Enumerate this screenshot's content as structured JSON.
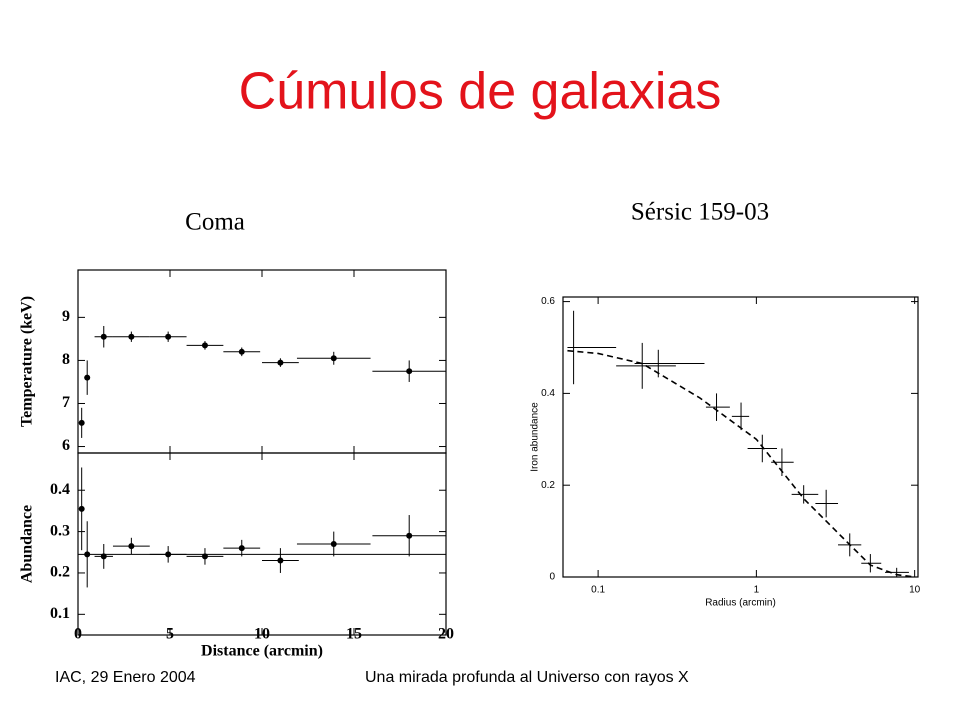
{
  "title": "Cúmulos de galaxias",
  "footer_left": "IAC, 29 Enero 2004",
  "footer_right": "Una mirada profunda al Universo con rayos X",
  "chart_data": [
    {
      "type": "scatter",
      "title": "Coma",
      "y_label": "Temperature (keV)",
      "x": [
        0.2,
        0.5,
        1.4,
        2.9,
        4.9,
        6.9,
        8.9,
        11,
        13.9,
        18
      ],
      "xerr": [
        0.15,
        0.15,
        0.5,
        1,
        1,
        1,
        1,
        1,
        2,
        2
      ],
      "values": [
        6.55,
        7.6,
        8.55,
        8.55,
        8.55,
        8.35,
        8.2,
        7.95,
        8.05,
        7.75
      ],
      "yerr": [
        0.35,
        0.4,
        0.25,
        0.12,
        0.12,
        0.1,
        0.1,
        0.1,
        0.15,
        0.25
      ],
      "xlim": [
        0,
        20
      ],
      "xticks": [
        0,
        5,
        10,
        15,
        20
      ],
      "ylim": [
        5.85,
        10.1
      ],
      "yticks": [
        6,
        7,
        8,
        9
      ]
    },
    {
      "type": "scatter",
      "x_label": "Distance (arcmin)",
      "y_label": "Abundance",
      "x": [
        0.2,
        0.5,
        1.4,
        2.9,
        4.9,
        6.9,
        8.9,
        11,
        13.9,
        18
      ],
      "xerr": [
        0.15,
        0.15,
        0.5,
        1,
        1,
        1,
        1,
        1,
        2,
        2
      ],
      "values": [
        0.355,
        0.245,
        0.24,
        0.265,
        0.245,
        0.24,
        0.26,
        0.23,
        0.27,
        0.29
      ],
      "yerr": [
        0.1,
        0.08,
        0.03,
        0.02,
        0.02,
        0.02,
        0.02,
        0.03,
        0.03,
        0.05
      ],
      "reference_line": 0.245,
      "xlim": [
        0,
        20
      ],
      "xticks": [
        0,
        5,
        10,
        15,
        20
      ],
      "ylim": [
        0.05,
        0.49
      ],
      "yticks": [
        0.1,
        0.2,
        0.3,
        0.4
      ]
    },
    {
      "type": "scatter",
      "title": "Sérsic 159-03",
      "x_label": "Radius (arcmin)",
      "y_label": "Iron abundance",
      "xscale": "log",
      "x": [
        0.07,
        0.19,
        0.24,
        0.56,
        0.8,
        1.09,
        1.45,
        1.99,
        2.76,
        3.89,
        5.25,
        7.7
      ],
      "x_low": [
        0.064,
        0.13,
        0.17,
        0.48,
        0.7,
        0.88,
        1.24,
        1.67,
        2.36,
        3.28,
        4.6,
        6.5
      ],
      "x_high": [
        0.13,
        0.31,
        0.47,
        0.68,
        0.9,
        1.35,
        1.72,
        2.46,
        3.28,
        4.6,
        6.15,
        9.2
      ],
      "values": [
        0.5,
        0.46,
        0.465,
        0.37,
        0.35,
        0.28,
        0.25,
        0.18,
        0.16,
        0.07,
        0.03,
        0.01
      ],
      "yerr": [
        0.08,
        0.05,
        0.03,
        0.03,
        0.03,
        0.03,
        0.03,
        0.02,
        0.03,
        0.025,
        0.02,
        0.01
      ],
      "model": {
        "x": [
          0.064,
          0.1,
          0.19,
          0.44,
          1,
          2,
          3.9,
          5.25,
          7.7,
          10
        ],
        "values": [
          0.493,
          0.487,
          0.465,
          0.39,
          0.3,
          0.17,
          0.07,
          0.026,
          0.005,
          0
        ]
      },
      "xlim": [
        0.06,
        10.5
      ],
      "xticks": [
        0.1,
        1,
        10
      ],
      "ylim": [
        0,
        0.61
      ],
      "yticks": [
        0,
        0.2,
        0.4,
        0.6
      ]
    }
  ]
}
